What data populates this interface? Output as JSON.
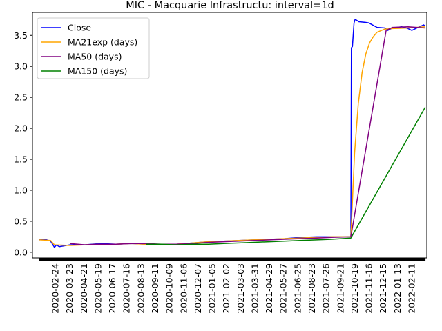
{
  "chart_data": {
    "type": "line",
    "title": "MIC - Macquarie Infrastructu: interval=1d",
    "xlabel": "",
    "ylabel": "",
    "x_range": [
      "2020-02-11",
      "2022-02-17"
    ],
    "ylim": [
      -0.09,
      3.87
    ],
    "y_ticks": [
      0.0,
      0.5,
      1.0,
      1.5,
      2.0,
      2.5,
      3.0,
      3.5
    ],
    "y_tick_labels": [
      "0.0",
      "0.5",
      "1.0",
      "1.5",
      "2.0",
      "2.5",
      "3.0",
      "3.5"
    ],
    "x_tick_labels": [
      "2020-02-24",
      "2020-03-23",
      "2020-04-21",
      "2020-05-19",
      "2020-06-17",
      "2020-07-16",
      "2020-08-13",
      "2020-09-11",
      "2020-10-09",
      "2020-11-06",
      "2020-12-07",
      "2021-01-05",
      "2021-02-02",
      "2021-03-03",
      "2021-03-31",
      "2021-04-29",
      "2021-05-27",
      "2021-06-25",
      "2021-08-23",
      "2021-07-26",
      "2021-09-21",
      "2021-10-19",
      "2021-11-16",
      "2021-12-15",
      "2022-01-13",
      "2022-02-11"
    ],
    "grid": false,
    "legend_position": "upper-left",
    "series": [
      {
        "name": "Close",
        "color": "#0000ff",
        "points": [
          [
            "2020-02-24",
            0.2
          ],
          [
            "2020-03-05",
            0.21
          ],
          [
            "2020-03-16",
            0.18
          ],
          [
            "2020-03-23",
            0.08
          ],
          [
            "2020-03-27",
            0.12
          ],
          [
            "2020-04-01",
            0.09
          ],
          [
            "2020-04-21",
            0.12
          ],
          [
            "2020-05-19",
            0.12
          ],
          [
            "2020-06-17",
            0.14
          ],
          [
            "2020-07-16",
            0.13
          ],
          [
            "2020-08-13",
            0.14
          ],
          [
            "2020-09-11",
            0.13
          ],
          [
            "2020-10-09",
            0.12
          ],
          [
            "2020-11-06",
            0.13
          ],
          [
            "2020-12-07",
            0.15
          ],
          [
            "2021-01-05",
            0.17
          ],
          [
            "2021-02-02",
            0.18
          ],
          [
            "2021-03-03",
            0.19
          ],
          [
            "2021-03-31",
            0.2
          ],
          [
            "2021-04-29",
            0.21
          ],
          [
            "2021-05-27",
            0.22
          ],
          [
            "2021-06-25",
            0.24
          ],
          [
            "2021-07-26",
            0.25
          ],
          [
            "2021-08-23",
            0.25
          ],
          [
            "2021-09-28",
            0.25
          ],
          [
            "2021-09-29",
            3.3
          ],
          [
            "2021-10-01",
            3.32
          ],
          [
            "2021-10-04",
            3.7
          ],
          [
            "2021-10-06",
            3.76
          ],
          [
            "2021-10-13",
            3.72
          ],
          [
            "2021-10-25",
            3.71
          ],
          [
            "2021-11-01",
            3.7
          ],
          [
            "2021-11-16",
            3.63
          ],
          [
            "2021-12-01",
            3.62
          ],
          [
            "2021-12-06",
            3.58
          ],
          [
            "2021-12-15",
            3.62
          ],
          [
            "2022-01-01",
            3.64
          ],
          [
            "2022-01-13",
            3.61
          ],
          [
            "2022-01-20",
            3.58
          ],
          [
            "2022-02-01",
            3.63
          ],
          [
            "2022-02-11",
            3.67
          ],
          [
            "2022-02-14",
            3.65
          ]
        ]
      },
      {
        "name": "MA21exp (days)",
        "color": "#ffa500",
        "points": [
          [
            "2020-02-24",
            0.2
          ],
          [
            "2020-03-16",
            0.19
          ],
          [
            "2020-03-23",
            0.12
          ],
          [
            "2020-04-21",
            0.11
          ],
          [
            "2020-05-19",
            0.12
          ],
          [
            "2020-06-17",
            0.13
          ],
          [
            "2020-07-16",
            0.13
          ],
          [
            "2020-08-13",
            0.14
          ],
          [
            "2020-09-11",
            0.13
          ],
          [
            "2020-10-09",
            0.12
          ],
          [
            "2020-11-06",
            0.13
          ],
          [
            "2020-12-07",
            0.15
          ],
          [
            "2021-01-05",
            0.17
          ],
          [
            "2021-02-02",
            0.18
          ],
          [
            "2021-03-03",
            0.19
          ],
          [
            "2021-03-31",
            0.2
          ],
          [
            "2021-04-29",
            0.21
          ],
          [
            "2021-05-27",
            0.22
          ],
          [
            "2021-06-25",
            0.23
          ],
          [
            "2021-07-26",
            0.24
          ],
          [
            "2021-08-23",
            0.25
          ],
          [
            "2021-09-28",
            0.25
          ],
          [
            "2021-10-05",
            1.6
          ],
          [
            "2021-10-12",
            2.4
          ],
          [
            "2021-10-19",
            2.9
          ],
          [
            "2021-10-26",
            3.2
          ],
          [
            "2021-11-02",
            3.38
          ],
          [
            "2021-11-09",
            3.48
          ],
          [
            "2021-11-16",
            3.55
          ],
          [
            "2021-11-30",
            3.6
          ],
          [
            "2021-12-15",
            3.61
          ],
          [
            "2022-01-13",
            3.62
          ],
          [
            "2022-02-14",
            3.64
          ]
        ]
      },
      {
        "name": "MA50 (days)",
        "color": "#800080",
        "points": [
          [
            "2020-04-21",
            0.14
          ],
          [
            "2020-05-19",
            0.12
          ],
          [
            "2020-06-17",
            0.13
          ],
          [
            "2020-07-16",
            0.13
          ],
          [
            "2020-08-13",
            0.14
          ],
          [
            "2020-09-11",
            0.14
          ],
          [
            "2020-10-09",
            0.13
          ],
          [
            "2020-11-06",
            0.13
          ],
          [
            "2020-12-07",
            0.14
          ],
          [
            "2021-01-05",
            0.16
          ],
          [
            "2021-02-02",
            0.17
          ],
          [
            "2021-03-03",
            0.18
          ],
          [
            "2021-03-31",
            0.19
          ],
          [
            "2021-04-29",
            0.2
          ],
          [
            "2021-05-27",
            0.21
          ],
          [
            "2021-06-25",
            0.22
          ],
          [
            "2021-07-26",
            0.23
          ],
          [
            "2021-08-23",
            0.24
          ],
          [
            "2021-09-28",
            0.25
          ],
          [
            "2021-12-03",
            3.58
          ],
          [
            "2021-12-15",
            3.63
          ],
          [
            "2022-01-13",
            3.64
          ],
          [
            "2022-02-14",
            3.62
          ]
        ]
      },
      {
        "name": "MA150 (days)",
        "color": "#008000",
        "points": [
          [
            "2020-09-11",
            0.13
          ],
          [
            "2020-10-09",
            0.13
          ],
          [
            "2020-11-06",
            0.12
          ],
          [
            "2020-12-07",
            0.13
          ],
          [
            "2021-01-05",
            0.13
          ],
          [
            "2021-02-02",
            0.14
          ],
          [
            "2021-03-03",
            0.15
          ],
          [
            "2021-03-31",
            0.16
          ],
          [
            "2021-04-29",
            0.17
          ],
          [
            "2021-05-27",
            0.18
          ],
          [
            "2021-06-25",
            0.19
          ],
          [
            "2021-07-26",
            0.2
          ],
          [
            "2021-08-23",
            0.21
          ],
          [
            "2021-09-28",
            0.23
          ],
          [
            "2022-02-14",
            2.34
          ]
        ]
      }
    ]
  }
}
